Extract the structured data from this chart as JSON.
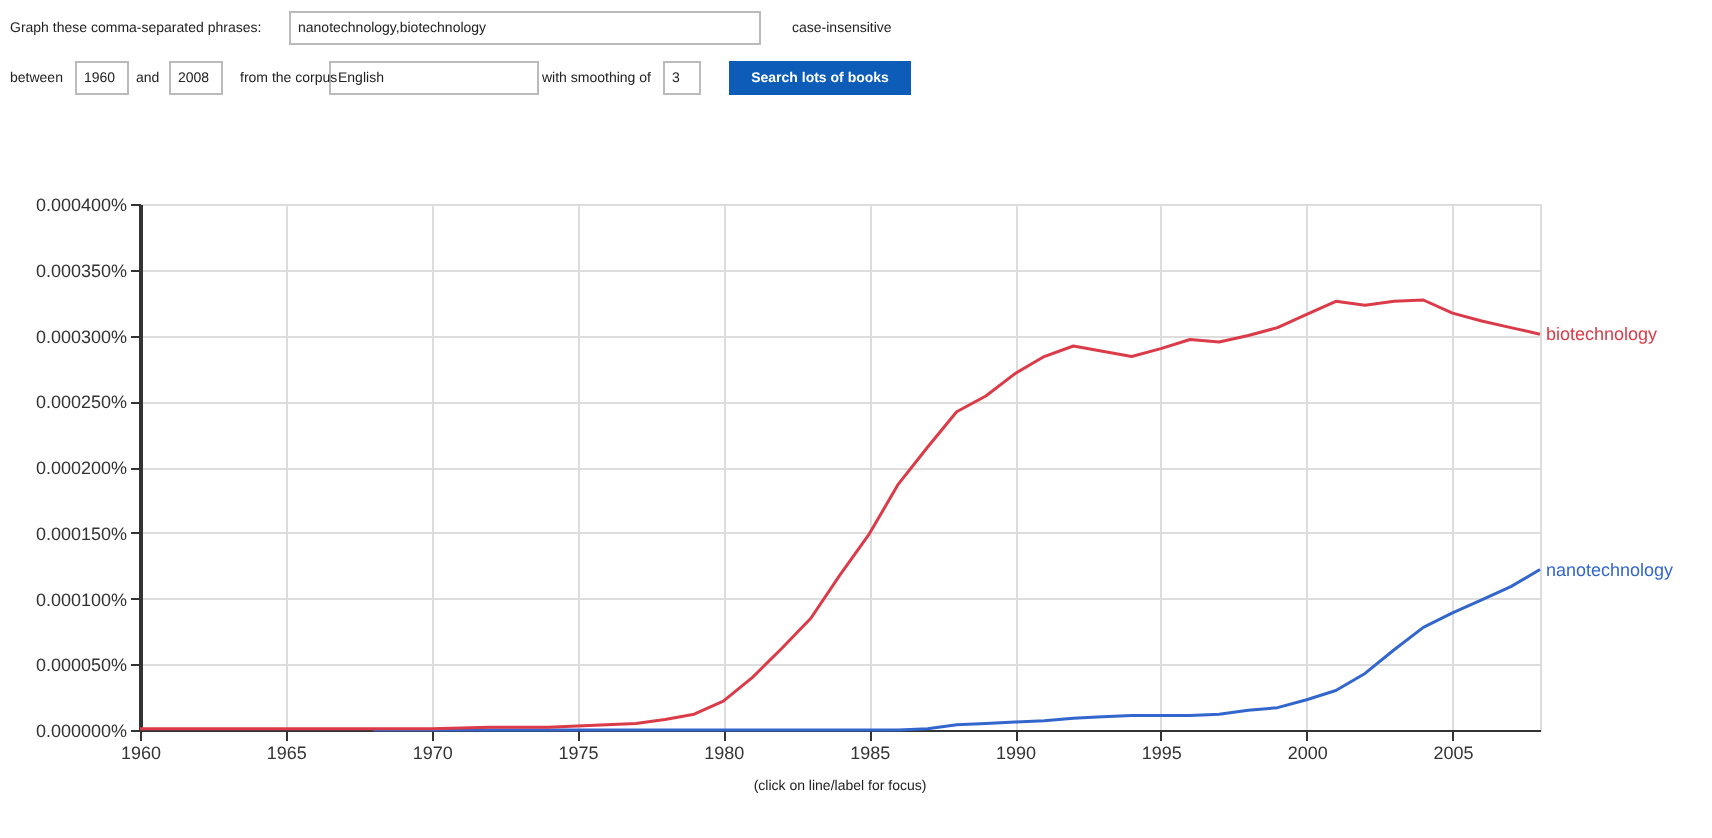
{
  "chart_data": {
    "type": "line",
    "x": [
      1960,
      1962,
      1964,
      1966,
      1968,
      1970,
      1972,
      1974,
      1975,
      1976,
      1977,
      1978,
      1979,
      1980,
      1981,
      1982,
      1983,
      1984,
      1985,
      1986,
      1987,
      1988,
      1989,
      1990,
      1991,
      1992,
      1993,
      1994,
      1995,
      1996,
      1997,
      1998,
      1999,
      2000,
      2001,
      2002,
      2003,
      2004,
      2005,
      2006,
      2007,
      2008
    ],
    "series": [
      {
        "name": "biotechnology",
        "color": "#db3b48",
        "values": [
          1e-06,
          1e-06,
          1e-06,
          1e-06,
          1e-06,
          1e-06,
          2e-06,
          2e-06,
          3e-06,
          4e-06,
          5e-06,
          8e-06,
          1.2e-05,
          2.2e-05,
          4e-05,
          6.2e-05,
          8.5e-05,
          0.000118,
          0.000149,
          0.000187,
          0.000215,
          0.000242,
          0.000254,
          0.000271,
          0.000284,
          0.000292,
          0.000288,
          0.000284,
          0.00029,
          0.000297,
          0.000295,
          0.0003,
          0.000306,
          0.000316,
          0.000326,
          0.000323,
          0.000326,
          0.000327,
          0.000317,
          0.000311,
          0.000306,
          0.000301
        ]
      },
      {
        "name": "nanotechnology",
        "color": "#3366cc",
        "values": [
          null,
          null,
          null,
          null,
          0,
          0,
          0,
          0,
          0,
          0,
          0,
          0,
          0,
          0,
          0,
          0,
          0,
          0,
          0,
          0,
          1e-06,
          4e-06,
          5e-06,
          6e-06,
          7e-06,
          9e-06,
          1e-05,
          1.1e-05,
          1.1e-05,
          1.1e-05,
          1.2e-05,
          1.5e-05,
          1.7e-05,
          2.3e-05,
          3e-05,
          4.3e-05,
          6.1e-05,
          7.8e-05,
          8.9e-05,
          9.9e-05,
          0.000109,
          0.000122
        ]
      }
    ],
    "xlim": [
      1960,
      2008
    ],
    "xticks": [
      1960,
      1965,
      1970,
      1975,
      1980,
      1985,
      1990,
      1995,
      2000,
      2005
    ],
    "ylim": [
      0,
      0.0004
    ],
    "yticks": [
      {
        "value": 0,
        "label": "0.000000%"
      },
      {
        "value": 5e-05,
        "label": "0.000050%"
      },
      {
        "value": 0.0001,
        "label": "0.000100%"
      },
      {
        "value": 0.00015,
        "label": "0.000150%"
      },
      {
        "value": 0.0002,
        "label": "0.000200%"
      },
      {
        "value": 0.00025,
        "label": "0.000250%"
      },
      {
        "value": 0.0003,
        "label": "0.000300%"
      },
      {
        "value": 0.00035,
        "label": "0.000350%"
      },
      {
        "value": 0.0004,
        "label": "0.000400%"
      }
    ],
    "grid": true,
    "legend": false,
    "line_style": "solid",
    "annotations": [
      "Graph these comma-separated phrases:",
      "nanotechnology,biotechnology",
      "case-insensitive",
      "between",
      "1960",
      "and",
      "2008",
      "from the corpus",
      "English",
      "with smoothing of",
      "3",
      "Search lots of books",
      "(click on line/label for focus)"
    ]
  }
}
